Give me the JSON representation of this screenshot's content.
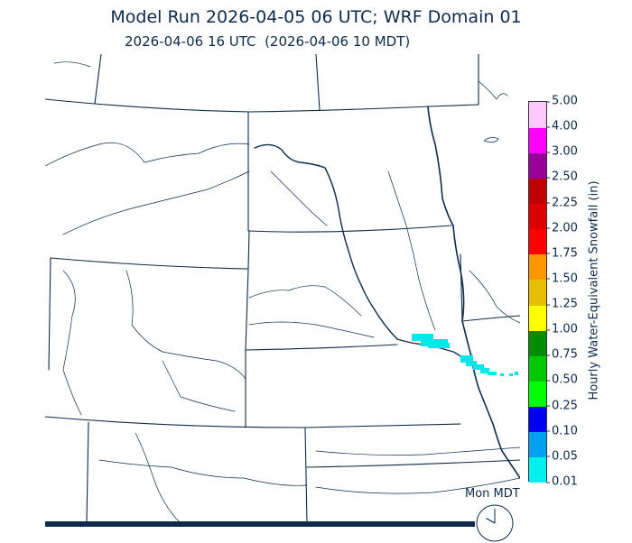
{
  "header": {
    "title": "Model Run 2026-04-05 06 UTC; WRF Domain 01",
    "valid_time": "2026-04-06 16 UTC  (2026-04-06 10 MDT)"
  },
  "colorbar": {
    "label": "Hourly Water-Equivalent Snowfall (in)",
    "ticks": [
      "0.01",
      "0.05",
      "0.10",
      "0.25",
      "0.50",
      "0.75",
      "1.00",
      "1.25",
      "1.50",
      "1.75",
      "2.00",
      "2.25",
      "2.50",
      "3.00",
      "4.00",
      "5.00"
    ],
    "colors": [
      "#00f0f0",
      "#00a0f0",
      "#0000f0",
      "#00ff00",
      "#00c800",
      "#008c00",
      "#ffff00",
      "#e6be00",
      "#ff9600",
      "#ff0000",
      "#dc0000",
      "#be0000",
      "#960096",
      "#ff00ff",
      "#ffc8ff"
    ]
  },
  "footer": {
    "day_label": "Mon MDT",
    "progress": 1.0
  },
  "clock": {
    "hour": 10
  },
  "colors": {
    "boundary": "#0d2a4a",
    "snowfall": "#00e8e8"
  }
}
